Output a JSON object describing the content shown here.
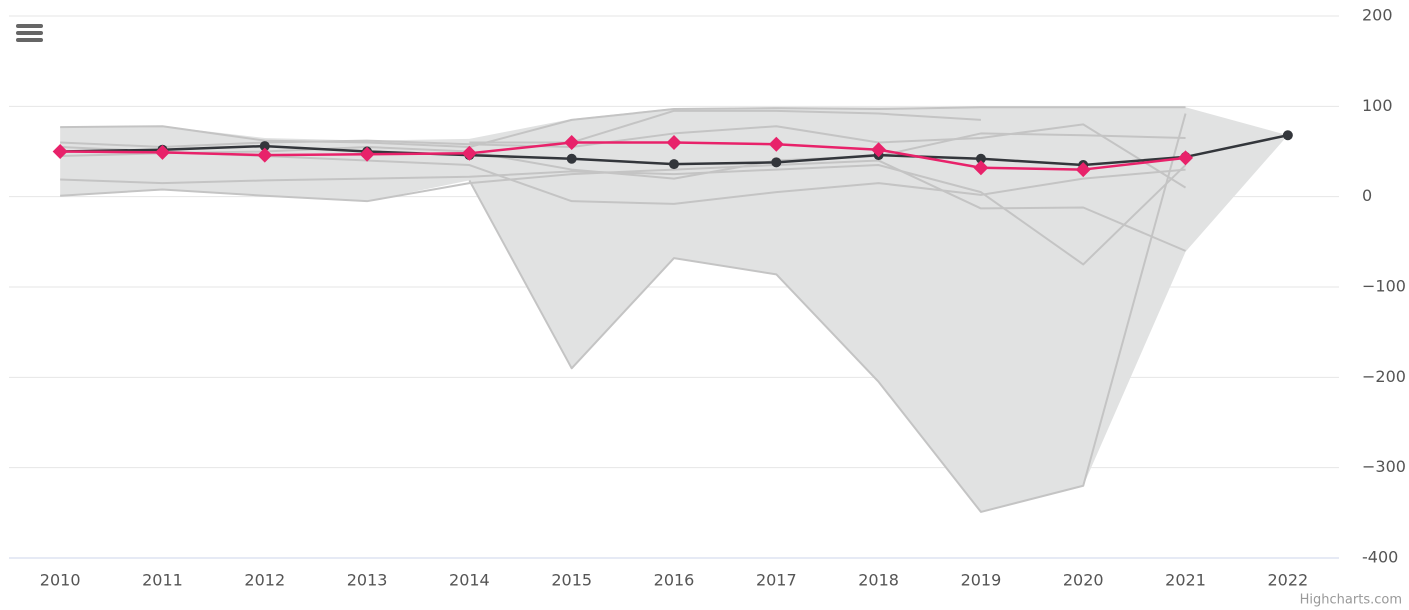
{
  "chart_data": {
    "type": "line",
    "categories": [
      "2010",
      "2011",
      "2012",
      "2013",
      "2014",
      "2015",
      "2016",
      "2017",
      "2018",
      "2019",
      "2020",
      "2021",
      "2022"
    ],
    "ylim": [
      -400,
      200
    ],
    "yticks": [
      -400,
      {
        "value": -300,
        "label": "−300"
      },
      {
        "value": -200,
        "label": "−200"
      },
      {
        "value": -100,
        "label": "−100"
      },
      0,
      100,
      200
    ],
    "grid": true,
    "range": {
      "color": "#e1e2e2",
      "high": [
        77,
        78,
        65,
        62,
        64,
        86,
        98,
        99,
        99,
        99,
        99,
        99,
        68
      ],
      "low": [
        0,
        8,
        1,
        -5,
        18,
        -190,
        -68,
        -86,
        -205,
        -349,
        -320,
        -61,
        68
      ]
    },
    "background_series": [
      {
        "color": "#c4c4c4",
        "values": [
          null,
          null,
          null,
          null,
          18,
          -190,
          -68,
          -86,
          -205,
          -349,
          -320,
          92,
          null
        ]
      },
      {
        "color": "#c4c4c4",
        "values": [
          77,
          78,
          62,
          60,
          55,
          85,
          97,
          98,
          97,
          99,
          99,
          99,
          null
        ]
      },
      {
        "color": "#c4c4c4",
        "values": [
          1,
          8,
          1,
          -5,
          15,
          25,
          30,
          35,
          40,
          -13,
          -12,
          -60,
          null
        ]
      },
      {
        "color": "#c4c4c4",
        "values": [
          19,
          15,
          18,
          20,
          22,
          28,
          25,
          30,
          35,
          5,
          -75,
          35,
          null
        ]
      },
      {
        "color": "#c4c4c4",
        "values": [
          60,
          55,
          60,
          62,
          58,
          55,
          70,
          78,
          60,
          65,
          80,
          10,
          null
        ]
      },
      {
        "color": "#c4c4c4",
        "values": [
          45,
          48,
          50,
          55,
          50,
          30,
          20,
          40,
          45,
          70,
          68,
          65,
          null
        ]
      },
      {
        "color": "#c4c4c4",
        "values": [
          55,
          50,
          45,
          40,
          35,
          -5,
          -8,
          5,
          15,
          2,
          20,
          30,
          null
        ]
      },
      {
        "color": "#c4c4c4",
        "values": [
          null,
          null,
          null,
          null,
          60,
          60,
          95,
          95,
          92,
          85,
          null,
          null,
          null
        ]
      }
    ],
    "series": [
      {
        "color": "#33363b",
        "marker": "circle",
        "values": [
          50,
          52,
          56,
          50,
          46,
          42,
          36,
          38,
          46,
          42,
          35,
          44,
          68
        ]
      },
      {
        "color": "#e8226a",
        "marker": "diamond",
        "values": [
          50,
          49,
          46,
          47,
          48,
          60,
          60,
          58,
          52,
          32,
          30,
          43,
          null
        ]
      }
    ],
    "credits": "Highcharts.com"
  }
}
